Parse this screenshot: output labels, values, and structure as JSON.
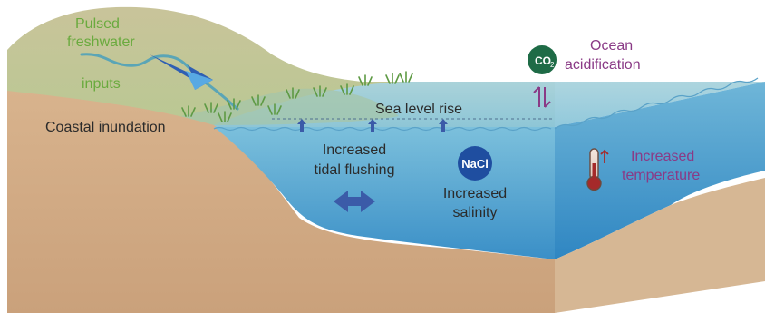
{
  "labels": {
    "pulsed_freshwater_line1": "Pulsed",
    "pulsed_freshwater_line2": "freshwater",
    "pulsed_freshwater_line3": "inputs",
    "coastal_inundation": "Coastal inundation",
    "sea_level_rise": "Sea level rise",
    "tidal_flushing_line1": "Increased",
    "tidal_flushing_line2": "tidal flushing",
    "salinity_line1": "Increased",
    "salinity_line2": "salinity",
    "ocean_acid_line1": "Ocean",
    "ocean_acid_line2": "acidification",
    "temperature_line1": "Increased",
    "temperature_line2": "temperature"
  },
  "badges": {
    "co2": "CO",
    "co2_sub": "2",
    "nacl": "NaCl"
  },
  "colors": {
    "land": "#d2ad88",
    "hill": "#c3c69a",
    "water": "#6fb7d6",
    "deep_water": "#3c93c8",
    "arrow_blue": "#3b5ba8",
    "purple": "#8a3a86",
    "green_text": "#6aaa3e",
    "co2_badge": "#1e6b46",
    "nacl_badge": "#1f4ea0"
  }
}
